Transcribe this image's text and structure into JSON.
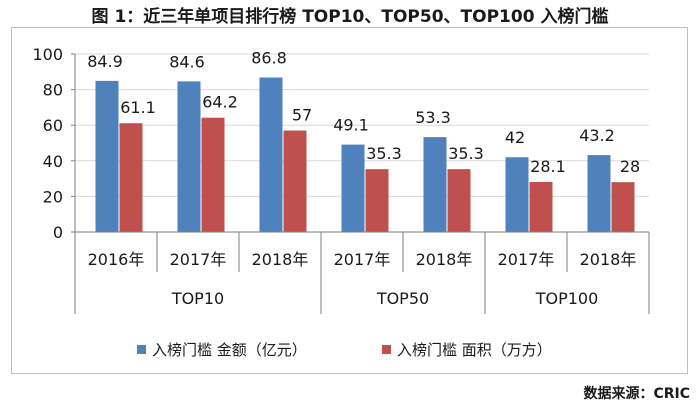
{
  "title": "图 1：近三年单项目排行榜 TOP10、TOP50、TOP100 入榜门槛",
  "source": "数据来源：CRIC",
  "colors": {
    "series1": "#4f81bd",
    "series2": "#c0504d",
    "grid": "#d9d9d9",
    "axis": "#7f7f7f"
  },
  "chart_data": {
    "type": "bar",
    "categories": [
      "2016年",
      "2017年",
      "2018年",
      "2017年",
      "2018年",
      "2017年",
      "2018年"
    ],
    "groups": [
      {
        "label": "TOP10",
        "span": 3
      },
      {
        "label": "TOP50",
        "span": 2
      },
      {
        "label": "TOP100",
        "span": 2
      }
    ],
    "series": [
      {
        "name": "入榜门槛 金额（亿元）",
        "values": [
          84.9,
          84.6,
          86.8,
          49.1,
          53.3,
          42,
          43.2
        ]
      },
      {
        "name": "入榜门槛 面积（万方）",
        "values": [
          61.1,
          64.2,
          57,
          35.3,
          35.3,
          28.1,
          28
        ]
      }
    ],
    "ylim": [
      0,
      100
    ],
    "yticks": [
      0,
      20,
      40,
      60,
      80,
      100
    ],
    "grid": true,
    "legend_position": "bottom"
  }
}
